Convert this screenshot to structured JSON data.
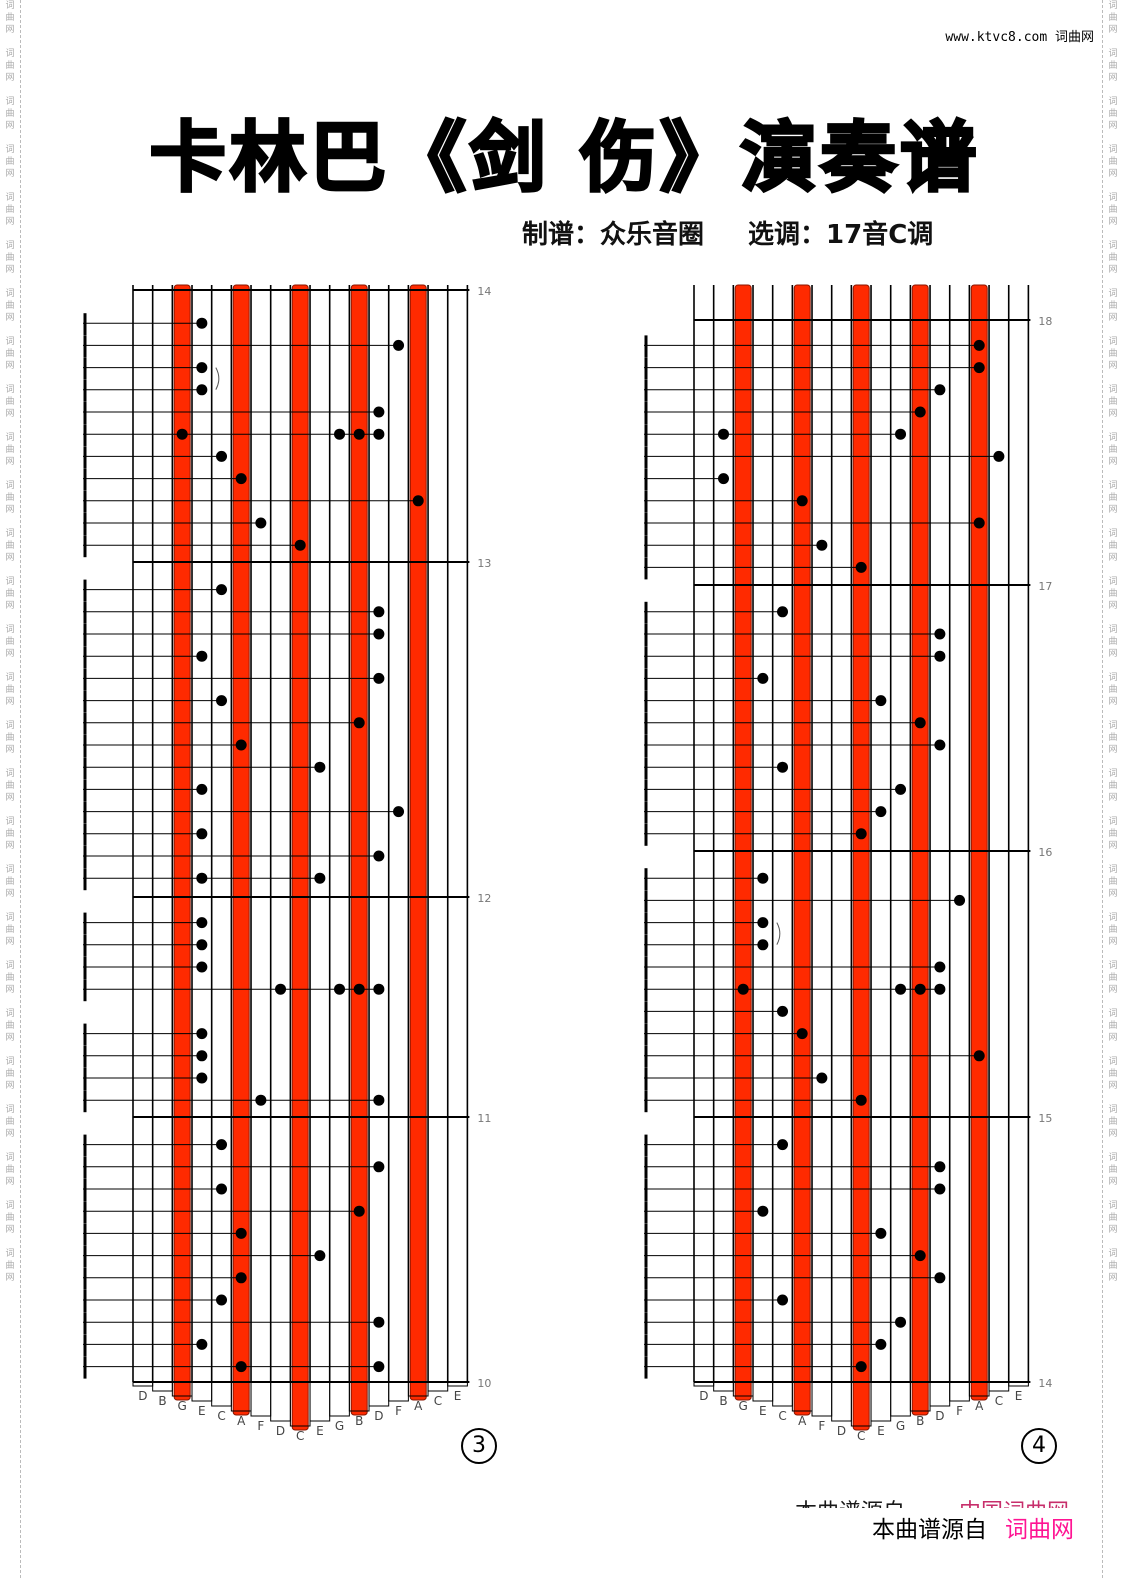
{
  "watermark": "词\n曲\n网",
  "header": {
    "site": "www.ktvc8.com 词曲网"
  },
  "title": "卡林巴《剑 伤》演奏谱",
  "subtitle": {
    "arranger": "制谱：众乐音圈",
    "key": "选调：17音C调"
  },
  "colors": {
    "red_key": "#ff2a00",
    "note": "#000000",
    "brand": "#ff1493"
  },
  "key_labels": [
    "D",
    "B",
    "G",
    "E",
    "C",
    "A",
    "F",
    "D",
    "C",
    "E",
    "G",
    "B",
    "D",
    "F",
    "A",
    "C",
    "E"
  ],
  "red_keys": [
    2,
    5,
    8,
    11,
    14
  ],
  "panels": [
    {
      "page": "3",
      "measures": [
        "14",
        "13",
        "12",
        "11",
        "10"
      ],
      "notes": [
        [
          1,
          3
        ],
        [
          2,
          13
        ],
        [
          3,
          3
        ],
        [
          4,
          3
        ],
        [
          5,
          12
        ],
        [
          6,
          2
        ],
        [
          6,
          10
        ],
        [
          6,
          11
        ],
        [
          6,
          12
        ],
        [
          7,
          4
        ],
        [
          8,
          5
        ],
        [
          9,
          14
        ],
        [
          10,
          6
        ],
        [
          11,
          8
        ],
        [
          13,
          4
        ],
        [
          14,
          12
        ],
        [
          15,
          12
        ],
        [
          16,
          3
        ],
        [
          17,
          12
        ],
        [
          18,
          4
        ],
        [
          19,
          11
        ],
        [
          20,
          5
        ],
        [
          21,
          9
        ],
        [
          22,
          3
        ],
        [
          23,
          13
        ],
        [
          24,
          3
        ],
        [
          25,
          12
        ],
        [
          26,
          3
        ],
        [
          26,
          9
        ],
        [
          28,
          3
        ],
        [
          29,
          3
        ],
        [
          30,
          3
        ],
        [
          31,
          7
        ],
        [
          31,
          10
        ],
        [
          31,
          11
        ],
        [
          31,
          12
        ],
        [
          33,
          3
        ],
        [
          34,
          3
        ],
        [
          35,
          3
        ],
        [
          36,
          6
        ],
        [
          36,
          12
        ],
        [
          38,
          4
        ],
        [
          39,
          12
        ],
        [
          40,
          4
        ],
        [
          41,
          11
        ],
        [
          42,
          5
        ],
        [
          43,
          9
        ],
        [
          44,
          5
        ],
        [
          45,
          4
        ],
        [
          46,
          12
        ],
        [
          47,
          3
        ],
        [
          48,
          5
        ],
        [
          48,
          12
        ]
      ],
      "slur_rows": [
        3
      ]
    },
    {
      "page": "4",
      "measures": [
        "18",
        "17",
        "16",
        "15",
        "14"
      ],
      "notes": [
        [
          2,
          14
        ],
        [
          3,
          14
        ],
        [
          4,
          12
        ],
        [
          5,
          11
        ],
        [
          6,
          1
        ],
        [
          6,
          10
        ],
        [
          7,
          15
        ],
        [
          8,
          1
        ],
        [
          9,
          5
        ],
        [
          10,
          14
        ],
        [
          11,
          6
        ],
        [
          12,
          8
        ],
        [
          14,
          4
        ],
        [
          15,
          12
        ],
        [
          16,
          12
        ],
        [
          17,
          3
        ],
        [
          18,
          9
        ],
        [
          19,
          11
        ],
        [
          20,
          12
        ],
        [
          21,
          4
        ],
        [
          22,
          10
        ],
        [
          23,
          9
        ],
        [
          24,
          8
        ],
        [
          26,
          3
        ],
        [
          27,
          13
        ],
        [
          28,
          3
        ],
        [
          29,
          3
        ],
        [
          30,
          12
        ],
        [
          31,
          2
        ],
        [
          31,
          10
        ],
        [
          31,
          11
        ],
        [
          31,
          12
        ],
        [
          32,
          4
        ],
        [
          33,
          5
        ],
        [
          34,
          14
        ],
        [
          35,
          6
        ],
        [
          36,
          8
        ],
        [
          38,
          4
        ],
        [
          39,
          12
        ],
        [
          40,
          12
        ],
        [
          41,
          3
        ],
        [
          42,
          9
        ],
        [
          43,
          11
        ],
        [
          44,
          12
        ],
        [
          45,
          4
        ],
        [
          46,
          10
        ],
        [
          47,
          9
        ],
        [
          48,
          8
        ]
      ],
      "slur_rows": [
        28
      ]
    }
  ],
  "footer": {
    "ghost_prefix": "本曲谱源自",
    "ghost_brand": "中国词曲网",
    "prefix": "本曲谱源自",
    "brand": "词曲网"
  }
}
